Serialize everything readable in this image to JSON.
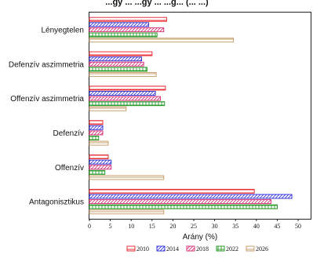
{
  "chart_data": {
    "type": "bar",
    "orientation": "horizontal",
    "title": "...gy ... ...gy ... ...g... (... ...)",
    "categories": [
      "Lényegtelen",
      "Defenzív aszimmetria",
      "Offenzív aszimmetria",
      "Defenzív",
      "Offenzív",
      "Antagonisztikus"
    ],
    "series": [
      {
        "name": "2010",
        "color": "#e8323a",
        "pattern": "horizontal-lines",
        "values": [
          18.5,
          15.0,
          18.2,
          3.2,
          4.5,
          39.5
        ]
      },
      {
        "name": "2014",
        "color": "#3a3ad8",
        "pattern": "diagonal-lines",
        "values": [
          14.2,
          12.5,
          15.8,
          3.2,
          5.2,
          48.5
        ]
      },
      {
        "name": "2018",
        "color": "#d8357a",
        "pattern": "diagonal-lines",
        "values": [
          17.8,
          13.0,
          17.0,
          3.2,
          5.2,
          43.5
        ]
      },
      {
        "name": "2022",
        "color": "#2a9a2a",
        "pattern": "grid",
        "values": [
          16.2,
          13.8,
          18.0,
          2.2,
          3.7,
          45.0
        ]
      },
      {
        "name": "2026",
        "color": "#c8a070",
        "pattern": "horizontal-lines",
        "values": [
          34.5,
          16.0,
          8.8,
          4.5,
          17.8,
          17.8
        ]
      }
    ],
    "xlabel": "Arány (%)",
    "xlim": [
      0,
      53
    ],
    "xticks": [
      "0",
      "5",
      "10",
      "15",
      "20",
      "25",
      "30",
      "35",
      "40",
      "45",
      "50"
    ],
    "grid": false,
    "legend": "bottom"
  }
}
